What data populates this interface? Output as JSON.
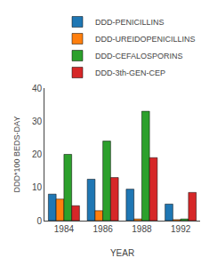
{
  "chart_data": {
    "type": "bar",
    "xlabel": "YEAR",
    "ylabel": "DDD*100 BEDS-DAY",
    "categories": [
      "1984",
      "1986",
      "1988",
      "1992"
    ],
    "series": [
      {
        "name": "DDD-PENICILLINS",
        "values": [
          8,
          12.5,
          9.5,
          5
        ]
      },
      {
        "name": "DDD-UREIDOPENICILLINS",
        "values": [
          6.5,
          3,
          0.5,
          0.3
        ]
      },
      {
        "name": "DDD-CEFALOSPORINS",
        "values": [
          20,
          24,
          33,
          0.5
        ]
      },
      {
        "name": "DDD-3th-GEN-CEP",
        "values": [
          4.5,
          13,
          19,
          8.5
        ]
      }
    ],
    "ylim": [
      0,
      40
    ],
    "yticks": [
      0,
      10,
      20,
      30,
      40
    ],
    "grid": false,
    "legend": "upper right"
  }
}
